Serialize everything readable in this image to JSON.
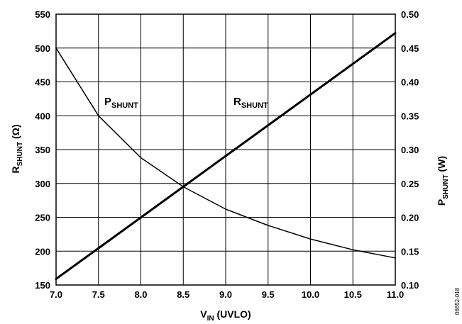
{
  "chart_data": {
    "type": "line",
    "x_label": {
      "main": "V",
      "sub": "IN",
      "rest": " (UVLO)"
    },
    "y_left_label": {
      "main": "R",
      "sub": "SHUNT",
      "rest": " (Ω)"
    },
    "y_right_label": {
      "main": "P",
      "sub": "SHUNT",
      "rest": " (W)"
    },
    "xlim": [
      7.0,
      11.0
    ],
    "ylim_left": [
      150,
      550
    ],
    "ylim_right": [
      0.1,
      0.5
    ],
    "x_ticks": [
      "7.0",
      "7.5",
      "8.0",
      "8.5",
      "9.0",
      "9.5",
      "10.0",
      "10.5",
      "11.0"
    ],
    "y_left_ticks": [
      "150",
      "200",
      "250",
      "300",
      "350",
      "400",
      "450",
      "500",
      "550"
    ],
    "y_right_ticks": [
      "0.10",
      "0.15",
      "0.20",
      "0.25",
      "0.30",
      "0.35",
      "0.40",
      "0.45",
      "0.50"
    ],
    "grid": true,
    "series": [
      {
        "name_main": "R",
        "name_sub": "SHUNT",
        "axis": "left",
        "stroke": "#000000",
        "line_weight": "heavy",
        "x": [
          7.0,
          11.0
        ],
        "y": [
          159,
          522
        ]
      },
      {
        "name_main": "P",
        "name_sub": "SHUNT",
        "axis": "right",
        "stroke": "#000000",
        "line_weight": "thin",
        "x": [
          7.0,
          7.5,
          8.0,
          8.5,
          9.0,
          9.5,
          10.0,
          10.5,
          11.0
        ],
        "y": [
          0.45,
          0.35,
          0.288,
          0.245,
          0.212,
          0.188,
          0.168,
          0.152,
          0.14
        ]
      }
    ]
  },
  "figure_id": "06652-018"
}
